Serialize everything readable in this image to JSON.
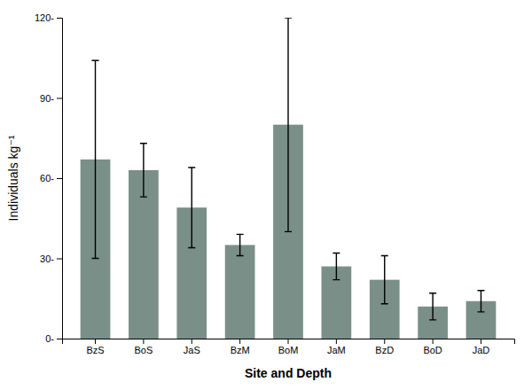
{
  "chart_data": {
    "type": "bar",
    "categories": [
      "BzS",
      "BoS",
      "JaS",
      "BzM",
      "BoM",
      "JaM",
      "BzD",
      "BoD",
      "JaD"
    ],
    "values": [
      67,
      63,
      49,
      35,
      80,
      27,
      22,
      12,
      14
    ],
    "errors": [
      37,
      10,
      15,
      4,
      40,
      5,
      9,
      5,
      4
    ],
    "color": "#7a8f87",
    "xlabel": "Site and Depth",
    "ylabel": "Individuals kg⁻¹",
    "ylim": [
      0,
      120
    ],
    "yticks": [
      {
        "value": 0,
        "label": "0-"
      },
      {
        "value": 30,
        "label": "30-"
      },
      {
        "value": 60,
        "label": "60-"
      },
      {
        "value": 90,
        "label": "90-"
      },
      {
        "value": 120,
        "label": "120-"
      }
    ],
    "grid": false
  }
}
